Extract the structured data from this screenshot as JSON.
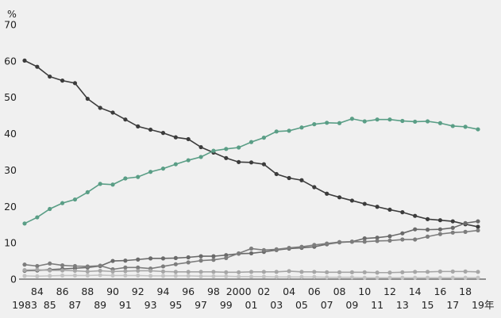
{
  "chart_data": {
    "type": "line",
    "title": "",
    "ylabel": "%",
    "xlabel": "",
    "x_unit": "年",
    "ylim": [
      0,
      70
    ],
    "yticks": [
      0,
      10,
      20,
      30,
      40,
      50,
      60,
      70
    ],
    "grid": false,
    "legend": "none",
    "x": [
      1983,
      1984,
      1985,
      1986,
      1987,
      1988,
      1989,
      1990,
      1991,
      1992,
      1993,
      1994,
      1995,
      1996,
      1997,
      1998,
      1999,
      2000,
      2001,
      2002,
      2003,
      2004,
      2005,
      2006,
      2007,
      2008,
      2009,
      2010,
      2011,
      2012,
      2013,
      2014,
      2015,
      2016,
      2017,
      2018,
      2019
    ],
    "x_tick_labels": [
      {
        "x": 1983,
        "row": 1,
        "label": "1983"
      },
      {
        "x": 1984,
        "row": 0,
        "label": "84"
      },
      {
        "x": 1985,
        "row": 1,
        "label": "85"
      },
      {
        "x": 1986,
        "row": 0,
        "label": "86"
      },
      {
        "x": 1987,
        "row": 1,
        "label": "87"
      },
      {
        "x": 1988,
        "row": 0,
        "label": "88"
      },
      {
        "x": 1989,
        "row": 1,
        "label": "89"
      },
      {
        "x": 1990,
        "row": 0,
        "label": "90"
      },
      {
        "x": 1991,
        "row": 1,
        "label": "91"
      },
      {
        "x": 1992,
        "row": 0,
        "label": "92"
      },
      {
        "x": 1993,
        "row": 1,
        "label": "93"
      },
      {
        "x": 1994,
        "row": 0,
        "label": "94"
      },
      {
        "x": 1995,
        "row": 1,
        "label": "95"
      },
      {
        "x": 1996,
        "row": 0,
        "label": "96"
      },
      {
        "x": 1997,
        "row": 1,
        "label": "97"
      },
      {
        "x": 1998,
        "row": 0,
        "label": "98"
      },
      {
        "x": 1999,
        "row": 1,
        "label": "99"
      },
      {
        "x": 2000,
        "row": 0,
        "label": "2000"
      },
      {
        "x": 2001,
        "row": 1,
        "label": "01"
      },
      {
        "x": 2002,
        "row": 0,
        "label": "02"
      },
      {
        "x": 2003,
        "row": 1,
        "label": "03"
      },
      {
        "x": 2004,
        "row": 0,
        "label": "04"
      },
      {
        "x": 2005,
        "row": 1,
        "label": "05"
      },
      {
        "x": 2006,
        "row": 0,
        "label": "06"
      },
      {
        "x": 2007,
        "row": 1,
        "label": "07"
      },
      {
        "x": 2008,
        "row": 0,
        "label": "08"
      },
      {
        "x": 2009,
        "row": 1,
        "label": "09"
      },
      {
        "x": 2010,
        "row": 0,
        "label": "10"
      },
      {
        "x": 2011,
        "row": 1,
        "label": "11"
      },
      {
        "x": 2012,
        "row": 0,
        "label": "12"
      },
      {
        "x": 2013,
        "row": 1,
        "label": "13"
      },
      {
        "x": 2014,
        "row": 0,
        "label": "14"
      },
      {
        "x": 2015,
        "row": 1,
        "label": "15"
      },
      {
        "x": 2016,
        "row": 0,
        "label": "16"
      },
      {
        "x": 2017,
        "row": 1,
        "label": "17"
      },
      {
        "x": 2018,
        "row": 0,
        "label": "18"
      },
      {
        "x": 2019,
        "row": 1,
        "label": "19"
      }
    ],
    "series": [
      {
        "color": "#3c3c3c",
        "values": [
          60.1,
          58.4,
          55.7,
          54.6,
          53.9,
          49.6,
          47.1,
          45.8,
          43.9,
          42.0,
          41.1,
          40.2,
          39.0,
          38.5,
          36.3,
          34.8,
          33.3,
          32.2,
          32.1,
          31.6,
          28.9,
          27.8,
          27.2,
          25.3,
          23.5,
          22.5,
          21.6,
          20.7,
          19.9,
          19.1,
          18.4,
          17.4,
          16.5,
          16.2,
          15.9,
          15.1,
          14.4
        ]
      },
      {
        "color": "#5a9e86",
        "values": [
          15.3,
          17.0,
          19.3,
          20.9,
          21.9,
          23.9,
          26.2,
          26.0,
          27.7,
          28.1,
          29.5,
          30.4,
          31.6,
          32.7,
          33.6,
          35.3,
          35.8,
          36.2,
          37.7,
          38.9,
          40.6,
          40.8,
          41.7,
          42.6,
          43.0,
          42.9,
          44.1,
          43.4,
          43.9,
          43.9,
          43.5,
          43.3,
          43.4,
          42.9,
          42.1,
          41.9,
          41.2
        ]
      },
      {
        "color": "#6a6a6a",
        "values": [
          2.3,
          2.4,
          2.6,
          2.8,
          3.0,
          3.2,
          3.6,
          5.0,
          5.1,
          5.4,
          5.7,
          5.7,
          5.8,
          6.0,
          6.3,
          6.3,
          6.6,
          7.0,
          7.1,
          7.5,
          8.0,
          8.4,
          8.6,
          8.9,
          9.6,
          10.1,
          10.3,
          11.2,
          11.4,
          11.8,
          12.6,
          13.7,
          13.6,
          13.7,
          14.1,
          15.4,
          15.9
        ]
      },
      {
        "color": "#7d7d7d",
        "values": [
          4.0,
          3.6,
          4.3,
          3.8,
          3.6,
          3.5,
          3.7,
          2.7,
          3.2,
          3.2,
          2.9,
          3.5,
          4.1,
          4.6,
          5.1,
          5.3,
          5.8,
          7.1,
          8.4,
          8.0,
          8.2,
          8.6,
          8.9,
          9.4,
          9.8,
          10.2,
          10.3,
          10.3,
          10.5,
          10.6,
          10.9,
          10.9,
          11.7,
          12.4,
          12.8,
          13.0,
          13.4
        ]
      },
      {
        "color": "#a6a6a6",
        "values": [
          2.5,
          2.6,
          2.4,
          2.4,
          2.3,
          2.1,
          2.3,
          2.1,
          2.2,
          2.3,
          2.3,
          2.1,
          2.0,
          2.0,
          2.0,
          2.0,
          1.9,
          1.9,
          2.0,
          2.0,
          2.0,
          2.2,
          2.0,
          2.0,
          1.9,
          1.9,
          1.9,
          1.9,
          1.8,
          1.8,
          1.9,
          2.0,
          2.0,
          2.1,
          2.1,
          2.1,
          2.0
        ]
      },
      {
        "color": "#c4c4c4",
        "values": [
          0.9,
          0.8,
          0.9,
          1.0,
          1.0,
          1.0,
          1.1,
          1.0,
          1.0,
          1.0,
          0.9,
          0.9,
          0.9,
          0.9,
          0.8,
          0.8,
          0.8,
          0.7,
          0.7,
          0.7,
          0.6,
          0.6,
          0.6,
          0.6,
          0.5,
          0.5,
          0.5,
          0.4,
          0.4,
          0.4,
          0.4,
          0.4,
          0.4,
          0.4,
          0.4,
          0.4,
          0.4
        ]
      }
    ]
  }
}
